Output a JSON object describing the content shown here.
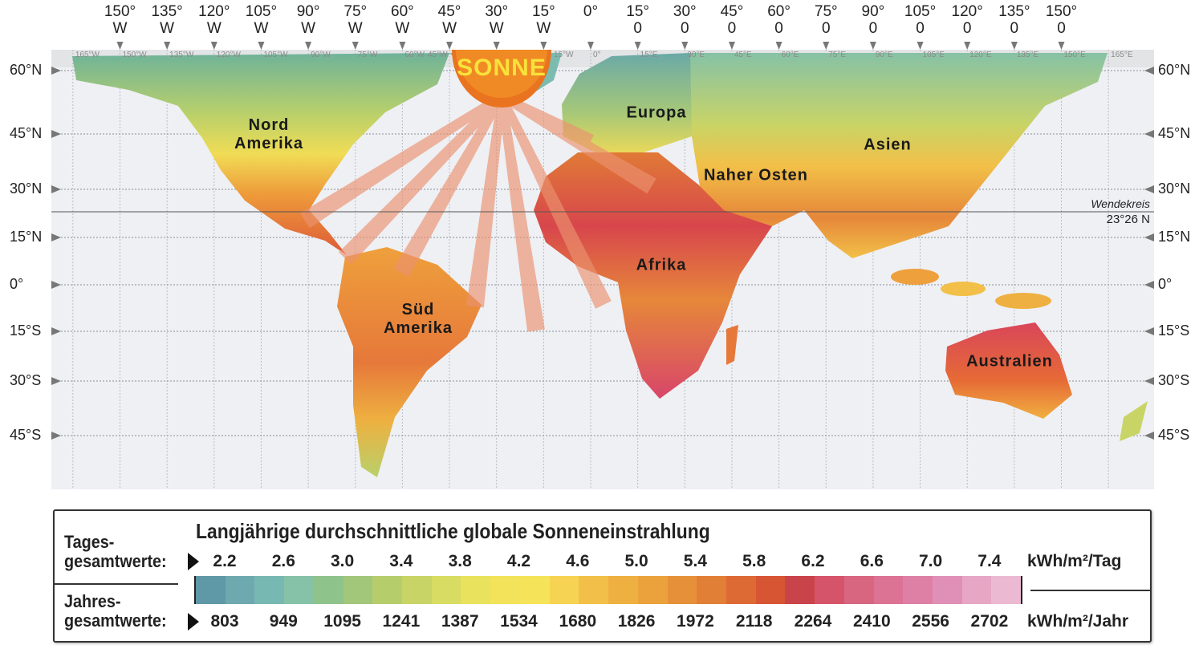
{
  "top_longitudes": [
    {
      "deg": "150°",
      "dir": "W"
    },
    {
      "deg": "135°",
      "dir": "W"
    },
    {
      "deg": "120°",
      "dir": "W"
    },
    {
      "deg": "105°",
      "dir": "W"
    },
    {
      "deg": "90°",
      "dir": "W"
    },
    {
      "deg": "75°",
      "dir": "W"
    },
    {
      "deg": "60°",
      "dir": "W"
    },
    {
      "deg": "45°",
      "dir": "W"
    },
    {
      "deg": "30°",
      "dir": "W"
    },
    {
      "deg": "15°",
      "dir": "W"
    },
    {
      "deg": "0°",
      "dir": ""
    },
    {
      "deg": "15°",
      "dir": "0"
    },
    {
      "deg": "30°",
      "dir": "0"
    },
    {
      "deg": "45°",
      "dir": "0"
    },
    {
      "deg": "60°",
      "dir": "0"
    },
    {
      "deg": "75°",
      "dir": "0"
    },
    {
      "deg": "90°",
      "dir": "0"
    },
    {
      "deg": "105°",
      "dir": "0"
    },
    {
      "deg": "120°",
      "dir": "0"
    },
    {
      "deg": "135°",
      "dir": "0"
    },
    {
      "deg": "150°",
      "dir": "0"
    }
  ],
  "inner_longitudes": [
    "165°W",
    "150°W",
    "135°W",
    "120°W",
    "105°W",
    "90°W",
    "75°W",
    "60°W",
    "45°W",
    "30°W",
    "15°W",
    "0°",
    "15°E",
    "30°E",
    "45°E",
    "60°E",
    "75°E",
    "90°E",
    "105°E",
    "120°E",
    "135°E",
    "150°E",
    "165°E"
  ],
  "latitudes": [
    "60°N",
    "45°N",
    "30°N",
    "15°N",
    "0°",
    "15°S",
    "30°S",
    "45°S"
  ],
  "tropic": {
    "name": "Wendekreis",
    "value": "23°26 N"
  },
  "sun_label": "SONNE",
  "regions": {
    "north_america": [
      "Nord",
      "Amerika"
    ],
    "europe": "Europa",
    "asia": "Asien",
    "middle_east": "Naher Osten",
    "africa": "Afrika",
    "south_america": [
      "Süd",
      "Amerika"
    ],
    "australia": "Australien"
  },
  "legend": {
    "title": "Langjährige durchschnittliche globale Sonneneinstrahlung",
    "daily_label": [
      "Tages-",
      "gesamtwerte:"
    ],
    "yearly_label": [
      "Jahres-",
      "gesamtwerte:"
    ],
    "daily_values": [
      "2.2",
      "2.6",
      "3.0",
      "3.4",
      "3.8",
      "4.2",
      "4.6",
      "5.0",
      "5.4",
      "5.8",
      "6.2",
      "6.6",
      "7.0",
      "7.4"
    ],
    "yearly_values": [
      "803",
      "949",
      "1095",
      "1241",
      "1387",
      "1534",
      "1680",
      "1826",
      "1972",
      "2118",
      "2264",
      "2410",
      "2556",
      "2702"
    ],
    "daily_unit": "kWh/m²/Tag",
    "yearly_unit": "kWh/m²/Jahr",
    "colors": [
      "#5f98a6",
      "#6ea9b0",
      "#78b8b2",
      "#86c2a8",
      "#8fc38c",
      "#a2c67a",
      "#b6cd6c",
      "#c9d466",
      "#d8dc62",
      "#e8e25c",
      "#f2e35a",
      "#f5e35a",
      "#f6d352",
      "#f2c048",
      "#eeb040",
      "#eba23c",
      "#e6913a",
      "#e27f36",
      "#dd6a34",
      "#d85534",
      "#c9434a",
      "#d5546a",
      "#d86680",
      "#dc7294",
      "#de80a6",
      "#e090b6",
      "#e6a6c4",
      "#ebbad2"
    ]
  }
}
